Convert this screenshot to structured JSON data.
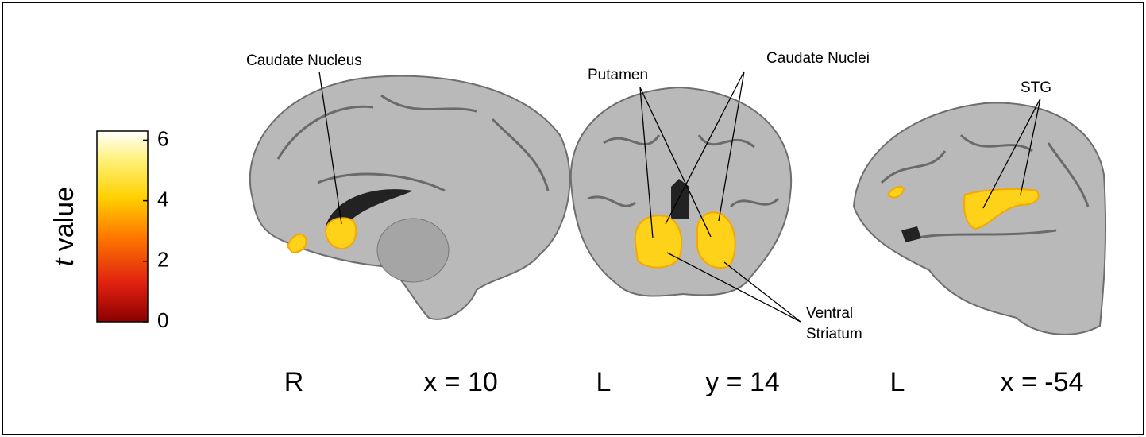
{
  "colorbar": {
    "label_italic": "t",
    "label": "value",
    "lim": [
      0,
      6.3
    ],
    "ticks": [
      0,
      2,
      4,
      6
    ]
  },
  "panels": [
    {
      "side": "R",
      "coordinate": "x = 10"
    },
    {
      "side": "L",
      "coordinate": "y = 14"
    },
    {
      "side": "L",
      "coordinate": "x = -54"
    }
  ],
  "annotations": {
    "caudate_nucleus": "Caudate Nucleus",
    "putamen": "Putamen",
    "caudate_nuclei": "Caudate Nuclei",
    "ventral_striatum": [
      "Ventral",
      "Striatum"
    ],
    "stg": "STG"
  }
}
